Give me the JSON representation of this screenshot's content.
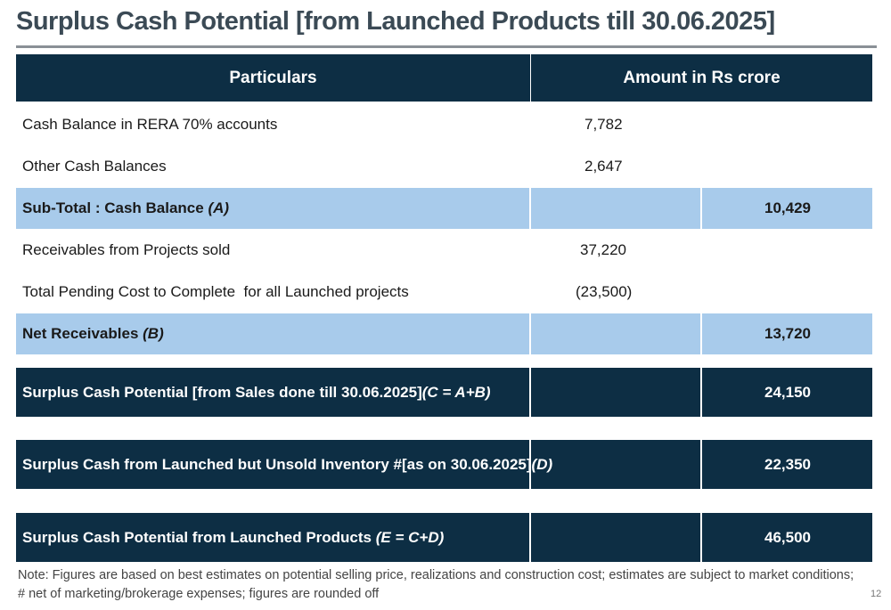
{
  "title": "Surplus Cash Potential [from Launched Products till 30.06.2025]",
  "table": {
    "header": {
      "particulars": "Particulars",
      "amount": "Amount in Rs crore"
    },
    "rows": [
      {
        "label": "Cash Balance in RERA 70% accounts",
        "mid": "7,782",
        "right": ""
      },
      {
        "label": "Other Cash Balances",
        "mid": "2,647",
        "right": ""
      },
      {
        "label": "Sub-Total : Cash Balance",
        "label_tag": "(A)",
        "mid": "",
        "right": "10,429"
      },
      {
        "label": "Receivables from Projects sold",
        "mid": "37,220",
        "right": ""
      },
      {
        "label": "Total Pending Cost to Complete  for all Launched projects",
        "mid": "(23,500)",
        "right": ""
      },
      {
        "label": "Net Receivables",
        "label_tag": "(B)",
        "mid": "",
        "right": "13,720"
      },
      {
        "label": "Surplus Cash Potential [from Sales done till 30.06.2025]",
        "label_tag": "(C = A+B)",
        "mid": "",
        "right": "24,150"
      },
      {
        "label": "Surplus Cash from Launched but Unsold Inventory #[as on 30.06.2025]",
        "label_tag": "(D)",
        "mid": "",
        "right": "22,350"
      },
      {
        "label": "Surplus Cash Potential from Launched Products",
        "label_tag": "(E = C+D)",
        "mid": "",
        "right": "46,500"
      }
    ]
  },
  "note": {
    "line1": "Note: Figures are based on best estimates on potential selling price, realizations and construction cost; estimates are subject to market conditions;",
    "line2": "# net of marketing/brokerage expenses; figures are rounded off"
  },
  "page_number": "12",
  "colors": {
    "dark_navy": "#0d2e44",
    "light_blue": "#a8cbeb",
    "title_gray": "#3b4a55"
  }
}
